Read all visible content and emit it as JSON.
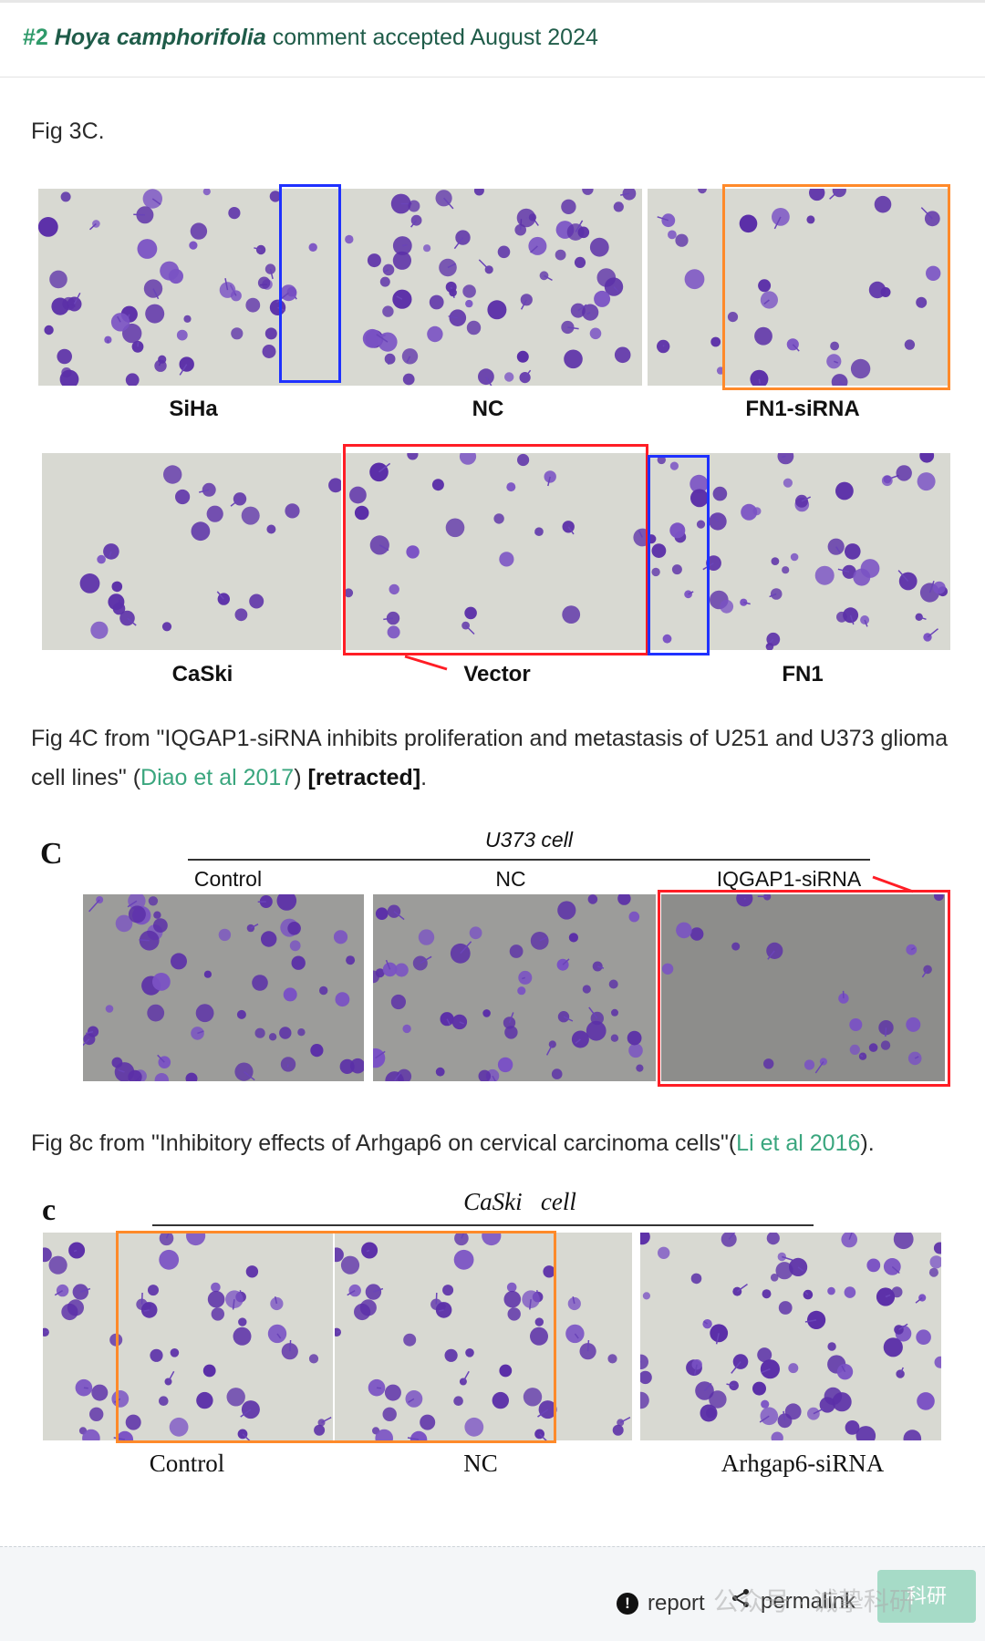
{
  "header": {
    "number": "#2",
    "species": "Hoya camphorifolia",
    "status": "comment accepted August 2024"
  },
  "fig3": {
    "caption": "Fig 3C.",
    "row1_labels": [
      "SiHa",
      "NC",
      "FN1-siRNA"
    ],
    "row2_labels": [
      "CaSki",
      "Vector",
      "FN1"
    ]
  },
  "fig4": {
    "caption_pre": "Fig 4C from \"IQGAP1-siRNA inhibits proliferation and metastasis of U251 and U373 glioma cell lines\" (",
    "link": "Diao et al 2017",
    "caption_mid": ") ",
    "retracted": "[retracted]",
    "caption_end": ".",
    "panel_letter": "C",
    "group_title": "U373 cell",
    "labels": [
      "Control",
      "NC",
      "IQGAP1-siRNA"
    ]
  },
  "fig8": {
    "caption_pre": "Fig 8c from \"Inhibitory effects of Arhgap6 on cervical carcinoma cells\"(",
    "link": "Li et al 2016",
    "caption_end": ").",
    "panel_letter": "c",
    "group_title": "CaSki   cell",
    "labels": [
      "Control",
      "NC",
      "Arhgap6-siRNA"
    ]
  },
  "footer": {
    "report_label": "report",
    "report_icon": "exclamation-circle-icon",
    "permalink_label": "permalink",
    "permalink_icon": "share-icon",
    "watermark": "公众号 · 诚挚科研",
    "watermark_button": "科研"
  },
  "colors": {
    "accent_green": "#2f9a6a",
    "link_green": "#3aa67e",
    "micro_bg": "#d8d9d2",
    "cell_purple": "#5b2fa8",
    "box_blue": "#1f31ff",
    "box_orange": "#ff8a2a",
    "box_red": "#ff1d25"
  }
}
